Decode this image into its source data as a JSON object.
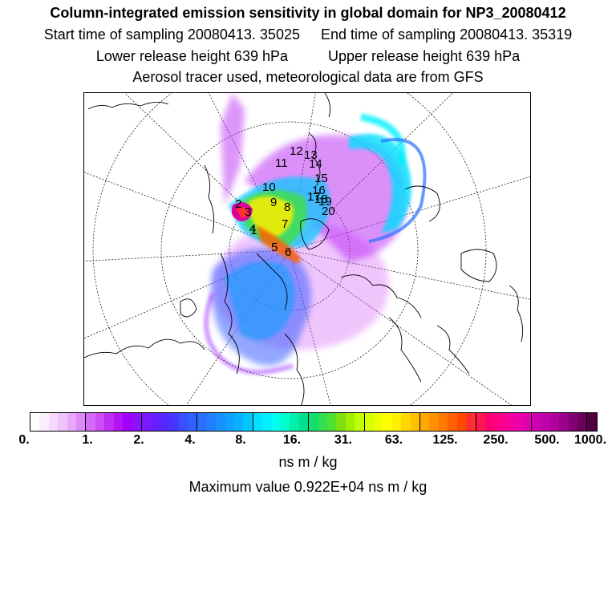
{
  "header": {
    "title": "Column-integrated emission sensitivity in global domain for NP3_20080412",
    "start_time": "Start time of sampling 20080413. 35025",
    "end_time": "End time of sampling 20080413. 35319",
    "lower_release": "Lower release height  639 hPa",
    "upper_release": "Upper release height  639 hPa",
    "tracer_info": "Aerosol tracer used, meteorological data are from GFS"
  },
  "map": {
    "projection": "polar stereographic",
    "trajectory_labels": [
      "1",
      "2",
      "3",
      "4",
      "5",
      "6",
      "7",
      "8",
      "9",
      "10",
      "11",
      "12",
      "13",
      "14",
      "15",
      "16",
      "17",
      "18",
      "19",
      "20"
    ]
  },
  "colorbar": {
    "tick_labels": [
      "0.",
      "1.",
      "2.",
      "4.",
      "8.",
      "16.",
      "31.",
      "63.",
      "125.",
      "250.",
      "500.",
      "1000."
    ],
    "colors": [
      "#ffffff",
      "#fbeefe",
      "#f5dafd",
      "#efc4fc",
      "#e8a8fb",
      "#df88fa",
      "#d66af8",
      "#cc4cf6",
      "#bf2ef4",
      "#b414f2",
      "#a100ff",
      "#8e10ff",
      "#7a18ff",
      "#6620ff",
      "#5528ff",
      "#4438ff",
      "#3850ff",
      "#3060ff",
      "#2870ff",
      "#2080ff",
      "#1890ff",
      "#10a0ff",
      "#08b0ff",
      "#00c8ff",
      "#00e0ff",
      "#00f0ff",
      "#00ffee",
      "#00ffcc",
      "#00f0aa",
      "#00e090",
      "#10e070",
      "#30e050",
      "#50e030",
      "#7ee010",
      "#a0f000",
      "#c0ff00",
      "#d8ff00",
      "#eeff00",
      "#ffff00",
      "#ffee00",
      "#ffd800",
      "#ffc000",
      "#ffa800",
      "#ff9000",
      "#ff7800",
      "#ff6000",
      "#ff4800",
      "#ff3030",
      "#ff1850",
      "#ff0070",
      "#ff0088",
      "#f8009a",
      "#ee00a8",
      "#e000b0",
      "#d000b0",
      "#c000a8",
      "#b0009a",
      "#9a008a",
      "#820070",
      "#6a0058",
      "#500040"
    ],
    "units": "ns m / kg",
    "max_value": "Maximum value  0.922E+04 ns m / kg"
  }
}
